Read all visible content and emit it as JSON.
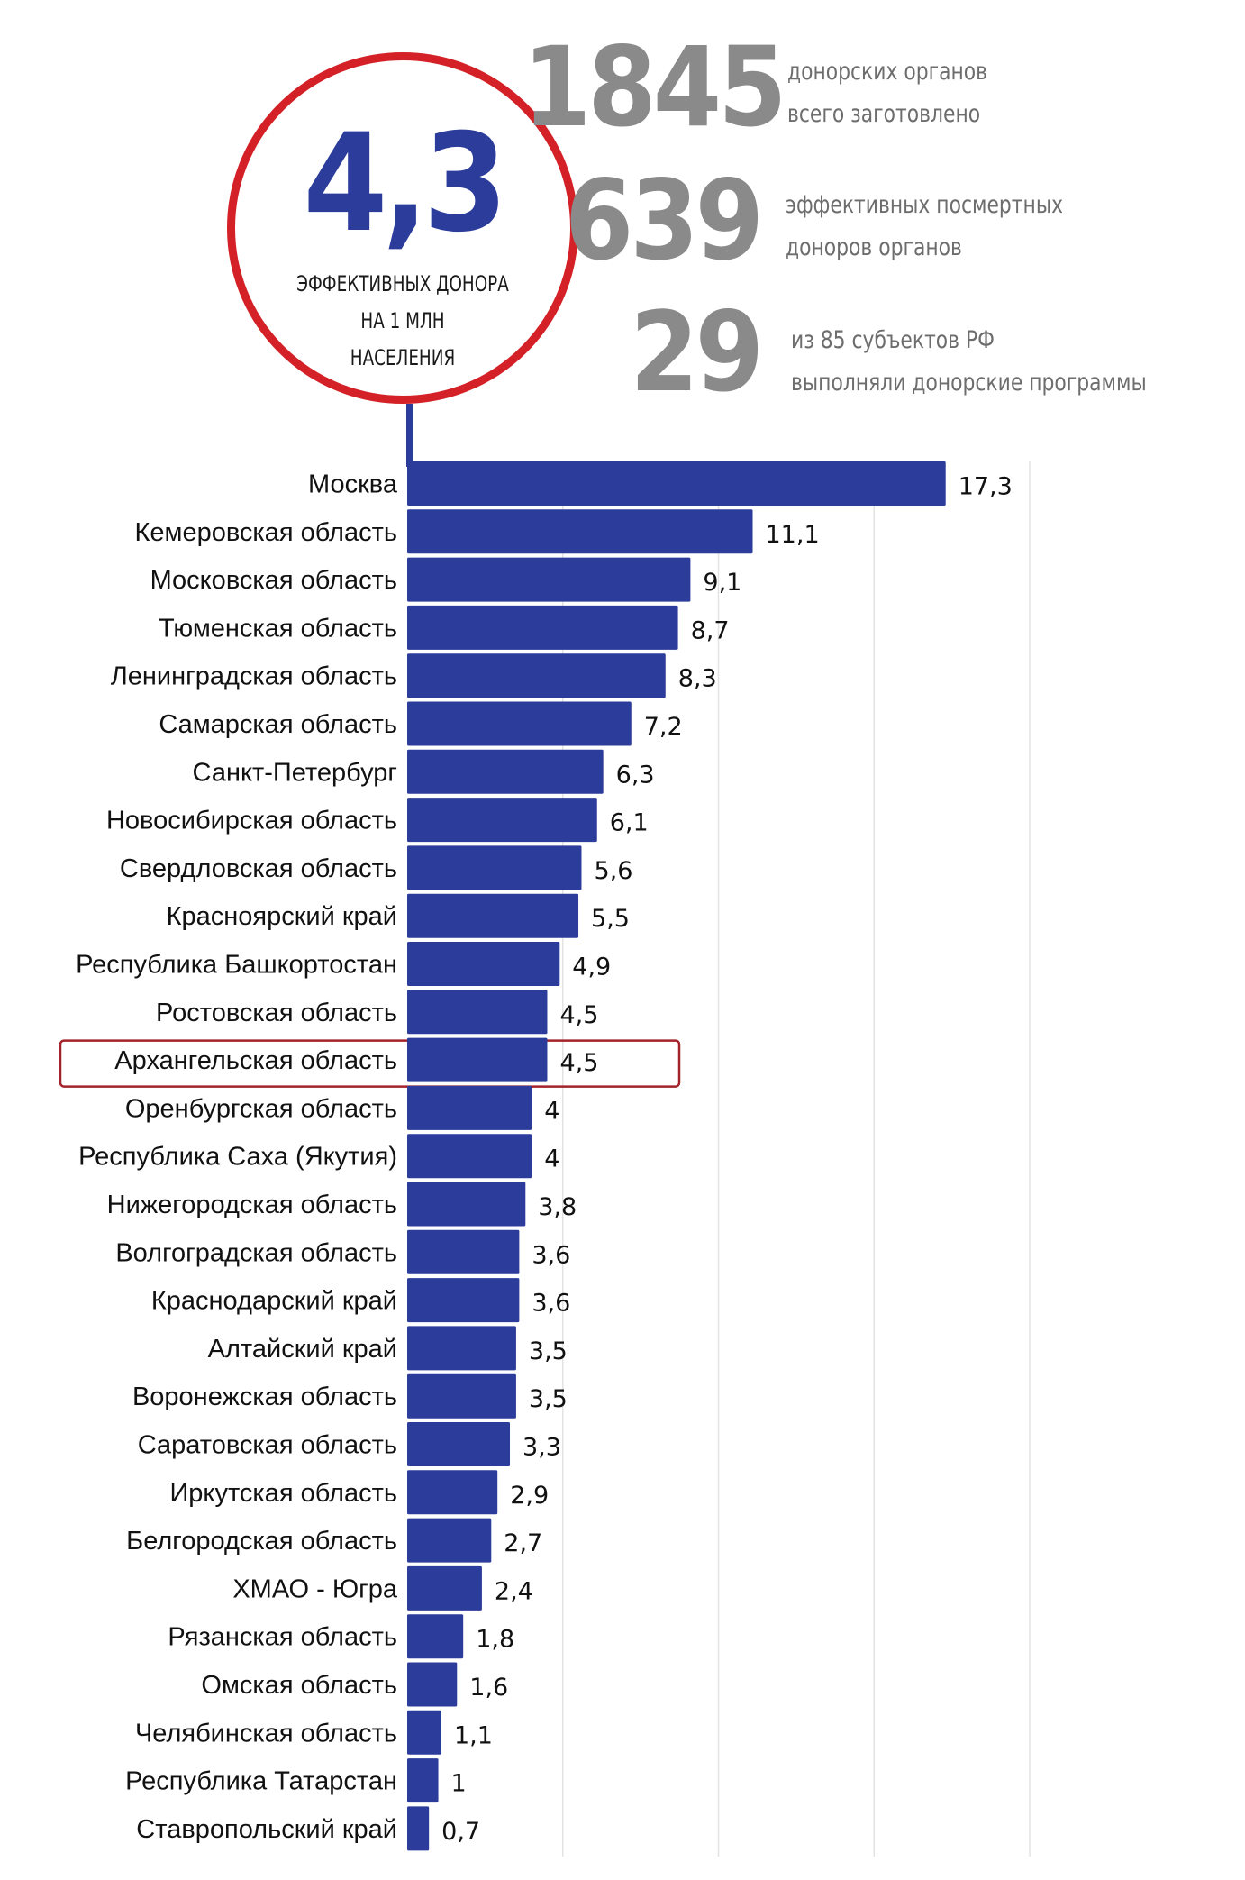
{
  "headline": {
    "value": "4,3",
    "caption_lines": [
      "ЭФФЕКТИВНЫХ ДОНОРА",
      "НА 1 МЛН",
      "НАСЕЛЕНИЯ"
    ]
  },
  "stats": [
    {
      "number": "1845",
      "lines": [
        "донорских органов",
        "всего заготовлено"
      ]
    },
    {
      "number": "639",
      "lines": [
        "эффективных посмертных",
        "доноров органов"
      ]
    },
    {
      "number": "29",
      "lines": [
        "из 85 субъектов РФ",
        "выполняли донорские программы"
      ]
    }
  ],
  "colors": {
    "bar": "#2c3c9b",
    "circle_border": "#d42127",
    "highlight_border": "#a3232a",
    "stat_number": "#8a8a8a",
    "grid": "#e3e3e3"
  },
  "chart_data": {
    "type": "bar",
    "orientation": "horizontal",
    "categories": [
      "Москва",
      "Кемеровская область",
      "Московская область",
      "Тюменская область",
      "Ленинградская область",
      "Самарская область",
      "Санкт-Петербург",
      "Новосибирская область",
      "Свердловская область",
      "Красноярский край",
      "Республика Башкортостан",
      "Ростовская область",
      "Архангельская область",
      "Оренбургская область",
      "Республика Саха (Якутия)",
      "Нижегородская область",
      "Волгоградская область",
      "Краснодарский край",
      "Алтайский край",
      "Воронежская область",
      "Саратовская область",
      "Иркутская область",
      "Белгородская область",
      "ХМАО - Югра",
      "Рязанская область",
      "Омская область",
      "Челябинская область",
      "Республика Татарстан",
      "Ставропольский край"
    ],
    "values": [
      17.3,
      11.1,
      9.1,
      8.7,
      8.3,
      7.2,
      6.3,
      6.1,
      5.6,
      5.5,
      4.9,
      4.5,
      4.5,
      4,
      4,
      3.8,
      3.6,
      3.6,
      3.5,
      3.5,
      3.3,
      2.9,
      2.7,
      2.4,
      1.8,
      1.6,
      1.1,
      1,
      0.7
    ],
    "value_labels": [
      "17,3",
      "11,1",
      "9,1",
      "8,7",
      "8,3",
      "7,2",
      "6,3",
      "6,1",
      "5,6",
      "5,5",
      "4,9",
      "4,5",
      "4,5",
      "4",
      "4",
      "3,8",
      "3,6",
      "3,6",
      "3,5",
      "3,5",
      "3,3",
      "2,9",
      "2,7",
      "2,4",
      "1,8",
      "1,6",
      "1,1",
      "1",
      "0,7"
    ],
    "highlighted_category": "Архангельская область",
    "xlim": [
      0,
      20
    ],
    "grid_values": [
      5,
      10,
      15,
      20
    ],
    "grid": true,
    "legend": "none"
  }
}
